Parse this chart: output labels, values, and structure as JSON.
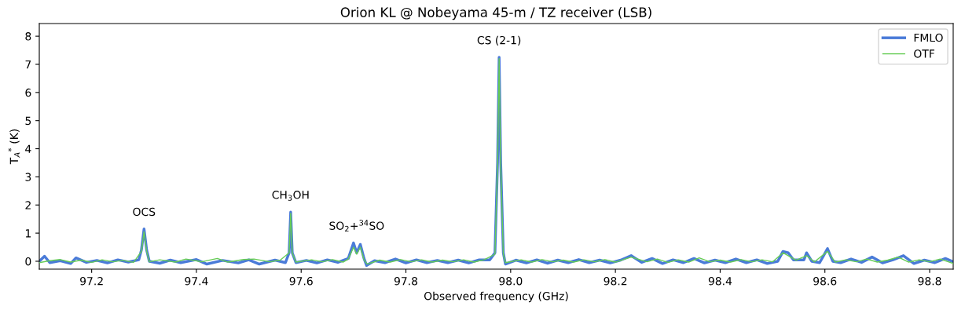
{
  "chart_data": {
    "type": "line",
    "title": "Orion KL @ Nobeyama 45-m / TZ receiver (LSB)",
    "xlabel": "Observed frequency (GHz)",
    "ylabel": "T$_{A}$$^{*}$ (K)",
    "xlim": [
      97.1,
      98.845
    ],
    "ylim": [
      -0.28,
      8.45
    ],
    "xticks": [
      97.2,
      97.4,
      97.6,
      97.8,
      {
        "value": 98,
        "label": "98.0"
      },
      98.2,
      98.4,
      98.6,
      98.8
    ],
    "yticks": [
      0,
      1,
      2,
      3,
      4,
      5,
      6,
      7,
      8
    ],
    "grid": false,
    "legend": "top right",
    "marker": "none",
    "line_style": "solid",
    "series": [
      {
        "name": "FMLO",
        "color": "#4a7bd8",
        "x": [
          97.1,
          97.11,
          97.12,
          97.14,
          97.16,
          97.17,
          97.19,
          97.21,
          97.23,
          97.25,
          97.27,
          97.29,
          97.295,
          97.3,
          97.305,
          97.31,
          97.33,
          97.35,
          97.37,
          97.4,
          97.42,
          97.45,
          97.48,
          97.5,
          97.52,
          97.55,
          97.57,
          97.577,
          97.58,
          97.583,
          97.59,
          97.61,
          97.63,
          97.65,
          97.67,
          97.69,
          97.7,
          97.706,
          97.713,
          97.72,
          97.725,
          97.74,
          97.76,
          97.78,
          97.8,
          97.82,
          97.84,
          97.86,
          97.88,
          97.9,
          97.92,
          97.94,
          97.96,
          97.97,
          97.975,
          97.978,
          97.981,
          97.986,
          97.99,
          98.01,
          98.03,
          98.05,
          98.07,
          98.09,
          98.11,
          98.13,
          98.15,
          98.17,
          98.19,
          98.21,
          98.23,
          98.25,
          98.27,
          98.29,
          98.31,
          98.33,
          98.35,
          98.37,
          98.39,
          98.41,
          98.43,
          98.45,
          98.47,
          98.49,
          98.51,
          98.52,
          98.53,
          98.54,
          98.56,
          98.565,
          98.575,
          98.59,
          98.605,
          98.615,
          98.63,
          98.65,
          98.67,
          98.69,
          98.71,
          98.73,
          98.75,
          98.77,
          98.79,
          98.81,
          98.83,
          98.845
        ],
        "values": [
          0.0,
          0.18,
          -0.05,
          0.02,
          -0.08,
          0.12,
          -0.04,
          0.03,
          -0.06,
          0.05,
          -0.03,
          0.05,
          0.4,
          1.15,
          0.4,
          0.0,
          -0.07,
          0.04,
          -0.05,
          0.06,
          -0.1,
          0.03,
          -0.06,
          0.05,
          -0.1,
          0.04,
          -0.05,
          0.3,
          1.75,
          0.3,
          -0.05,
          0.03,
          -0.06,
          0.05,
          -0.04,
          0.1,
          0.65,
          0.3,
          0.6,
          0.1,
          -0.15,
          0.02,
          -0.05,
          0.08,
          -0.06,
          0.05,
          -0.05,
          0.03,
          -0.05,
          0.04,
          -0.06,
          0.05,
          0.05,
          0.3,
          3.5,
          7.25,
          3.5,
          0.3,
          -0.1,
          0.04,
          -0.06,
          0.05,
          -0.07,
          0.04,
          -0.05,
          0.06,
          -0.05,
          0.04,
          -0.06,
          0.04,
          0.2,
          -0.04,
          0.1,
          -0.08,
          0.05,
          -0.05,
          0.1,
          -0.06,
          0.04,
          -0.05,
          0.08,
          -0.05,
          0.05,
          -0.08,
          0.0,
          0.35,
          0.3,
          0.05,
          0.05,
          0.3,
          0.0,
          -0.05,
          0.45,
          0.0,
          -0.05,
          0.08,
          -0.04,
          0.15,
          -0.06,
          0.05,
          0.2,
          -0.08,
          0.04,
          -0.05,
          0.1,
          -0.02
        ]
      },
      {
        "name": "OTF",
        "color": "#66cc55",
        "x": [
          97.1,
          97.12,
          97.14,
          97.16,
          97.18,
          97.2,
          97.22,
          97.24,
          97.26,
          97.28,
          97.295,
          97.3,
          97.305,
          97.31,
          97.33,
          97.36,
          97.38,
          97.41,
          97.44,
          97.46,
          97.49,
          97.51,
          97.54,
          97.56,
          97.577,
          97.58,
          97.583,
          97.59,
          97.62,
          97.64,
          97.66,
          97.68,
          97.69,
          97.7,
          97.706,
          97.713,
          97.72,
          97.726,
          97.75,
          97.77,
          97.79,
          97.81,
          97.83,
          97.85,
          97.87,
          97.89,
          97.91,
          97.93,
          97.95,
          97.97,
          97.975,
          97.978,
          97.981,
          97.986,
          97.99,
          98.02,
          98.04,
          98.06,
          98.08,
          98.1,
          98.12,
          98.14,
          98.16,
          98.18,
          98.2,
          98.23,
          98.26,
          98.28,
          98.3,
          98.32,
          98.34,
          98.36,
          98.38,
          98.4,
          98.42,
          98.44,
          98.46,
          98.48,
          98.5,
          98.52,
          98.53,
          98.545,
          98.565,
          98.58,
          98.605,
          98.62,
          98.64,
          98.66,
          98.68,
          98.7,
          98.72,
          98.74,
          98.76,
          98.78,
          98.8,
          98.82,
          98.845
        ],
        "values": [
          -0.05,
          0.02,
          0.06,
          -0.03,
          0.04,
          -0.04,
          0.05,
          -0.02,
          0.03,
          -0.04,
          0.35,
          1.05,
          0.35,
          -0.02,
          0.05,
          -0.03,
          0.08,
          -0.02,
          0.1,
          -0.03,
          0.06,
          0.08,
          -0.02,
          0.04,
          0.3,
          1.7,
          0.3,
          -0.03,
          0.05,
          -0.02,
          0.06,
          -0.03,
          0.08,
          0.5,
          0.25,
          0.5,
          0.05,
          -0.1,
          0.04,
          -0.03,
          0.06,
          -0.02,
          0.05,
          -0.03,
          0.04,
          -0.02,
          0.05,
          -0.03,
          0.06,
          0.25,
          3.4,
          7.2,
          3.4,
          0.25,
          -0.05,
          0.05,
          -0.03,
          0.06,
          -0.02,
          0.04,
          -0.03,
          0.05,
          -0.02,
          0.06,
          -0.03,
          0.15,
          -0.02,
          0.08,
          -0.04,
          0.05,
          -0.03,
          0.12,
          -0.02,
          0.04,
          -0.03,
          0.06,
          -0.02,
          0.05,
          -0.02,
          0.3,
          0.2,
          0.04,
          0.2,
          -0.02,
          0.35,
          -0.03,
          0.05,
          -0.02,
          0.08,
          -0.03,
          0.04,
          0.15,
          -0.03,
          0.05,
          -0.02,
          0.08,
          -0.08
        ]
      }
    ],
    "annotations": [
      {
        "text": "OCS",
        "x": 97.3,
        "y": 1.15
      },
      {
        "text": "CH$_{3}$OH",
        "x": 97.58,
        "y": 1.75
      },
      {
        "text": "SO$_{2}$+$^{34}$SO",
        "x": 97.706,
        "y": 0.65
      },
      {
        "text": "CS (2-1)",
        "x": 97.978,
        "y": 7.25
      }
    ]
  }
}
